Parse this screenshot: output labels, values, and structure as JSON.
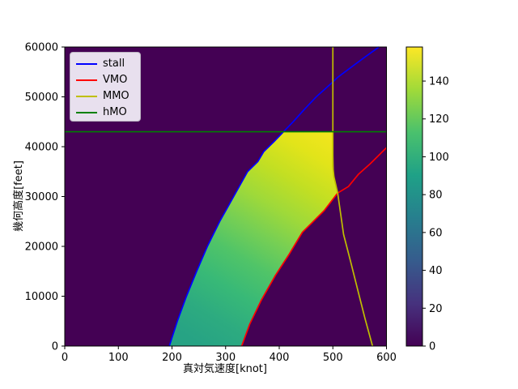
{
  "chart_data": {
    "type": "area",
    "subtype": "flight-envelope with viridis-colored field over dark background",
    "title": "",
    "xlabel": "真対気速度[knot]",
    "ylabel": "幾何高度[feet]",
    "xlim": [
      0,
      600
    ],
    "ylim": [
      0,
      60000
    ],
    "x_ticks": [
      0,
      100,
      200,
      300,
      400,
      500,
      600
    ],
    "y_ticks": [
      0,
      10000,
      20000,
      30000,
      40000,
      50000,
      60000
    ],
    "grid": false,
    "plot_background_color": "#440154",
    "frame_color": "#000000",
    "series": [
      {
        "name": "stall",
        "color": "#0000ff",
        "points": [
          [
            195,
            0
          ],
          [
            210,
            5000
          ],
          [
            227,
            10000
          ],
          [
            246,
            15000
          ],
          [
            266,
            20000
          ],
          [
            289,
            25000
          ],
          [
            315,
            30000
          ],
          [
            341,
            35000
          ],
          [
            360,
            37000
          ],
          [
            371,
            39000
          ],
          [
            390,
            41000
          ],
          [
            408,
            43000
          ],
          [
            426,
            45000
          ],
          [
            447,
            47500
          ],
          [
            469,
            50000
          ],
          [
            495,
            52500
          ],
          [
            510,
            54000
          ],
          [
            535,
            56000
          ],
          [
            560,
            58000
          ],
          [
            586,
            60000
          ]
        ]
      },
      {
        "name": "VMO",
        "color": "#ff0000",
        "points": [
          [
            330,
            0
          ],
          [
            345,
            4400
          ],
          [
            367,
            9300
          ],
          [
            393,
            14200
          ],
          [
            419,
            18500
          ],
          [
            443,
            22800
          ],
          [
            484,
            27200
          ],
          [
            509,
            30700
          ],
          [
            529,
            32000
          ],
          [
            548,
            34500
          ],
          [
            570,
            36600
          ],
          [
            600,
            39800
          ]
        ]
      },
      {
        "name": "MMO",
        "color": "#bfbf00",
        "points": [
          [
            574,
            0
          ],
          [
            560,
            5500
          ],
          [
            547,
            11000
          ],
          [
            533,
            17000
          ],
          [
            520,
            22400
          ],
          [
            509,
            30700
          ],
          [
            502,
            34000
          ],
          [
            500,
            36100
          ],
          [
            500,
            60000
          ]
        ]
      },
      {
        "name": "hMO",
        "color": "#008000",
        "points": [
          [
            0,
            43000
          ],
          [
            600,
            43000
          ]
        ]
      }
    ],
    "envelope": {
      "description": "flyable region bounded left by stall, top by hMO (43000 ft), right by MMO above ~30700 ft and VMO below",
      "boundary": [
        [
          195,
          0
        ],
        [
          210,
          5000
        ],
        [
          227,
          10000
        ],
        [
          246,
          15000
        ],
        [
          266,
          20000
        ],
        [
          289,
          25000
        ],
        [
          315,
          30000
        ],
        [
          341,
          35000
        ],
        [
          360,
          37000
        ],
        [
          371,
          39000
        ],
        [
          390,
          41000
        ],
        [
          408,
          43000
        ],
        [
          500,
          43000
        ],
        [
          501,
          39000
        ],
        [
          502,
          34000
        ],
        [
          509,
          30700
        ],
        [
          484,
          27200
        ],
        [
          443,
          22800
        ],
        [
          419,
          18500
        ],
        [
          393,
          14200
        ],
        [
          367,
          9300
        ],
        [
          345,
          4400
        ],
        [
          330,
          0
        ]
      ],
      "gradient": {
        "from": [
          500,
          43000
        ],
        "to": [
          260,
          0
        ],
        "stops": [
          {
            "offset": 0.0,
            "color": "#f4e61e"
          },
          {
            "offset": 0.12,
            "color": "#e2e41a"
          },
          {
            "offset": 0.25,
            "color": "#c2df23"
          },
          {
            "offset": 0.38,
            "color": "#9ed93a"
          },
          {
            "offset": 0.5,
            "color": "#76cf54"
          },
          {
            "offset": 0.62,
            "color": "#50c468"
          },
          {
            "offset": 0.75,
            "color": "#38b977"
          },
          {
            "offset": 0.88,
            "color": "#2dab80"
          },
          {
            "offset": 1.0,
            "color": "#27a384"
          }
        ]
      }
    },
    "colorbar": {
      "vmin": 0,
      "vmax": 158,
      "ticks": [
        0,
        20,
        40,
        60,
        80,
        100,
        120,
        140
      ],
      "colormap": "viridis",
      "stops": [
        {
          "offset": 0.0,
          "color": "#440154"
        },
        {
          "offset": 0.143,
          "color": "#46327e"
        },
        {
          "offset": 0.286,
          "color": "#365c8d"
        },
        {
          "offset": 0.429,
          "color": "#277f8e"
        },
        {
          "offset": 0.571,
          "color": "#1fa187"
        },
        {
          "offset": 0.714,
          "color": "#4ac16d"
        },
        {
          "offset": 0.857,
          "color": "#a0da39"
        },
        {
          "offset": 1.0,
          "color": "#fde725"
        }
      ]
    }
  },
  "legend": {
    "items": [
      {
        "label": "stall",
        "color": "#0000ff"
      },
      {
        "label": "VMO",
        "color": "#ff0000"
      },
      {
        "label": "MMO",
        "color": "#bfbf00"
      },
      {
        "label": "hMO",
        "color": "#008000"
      }
    ]
  }
}
